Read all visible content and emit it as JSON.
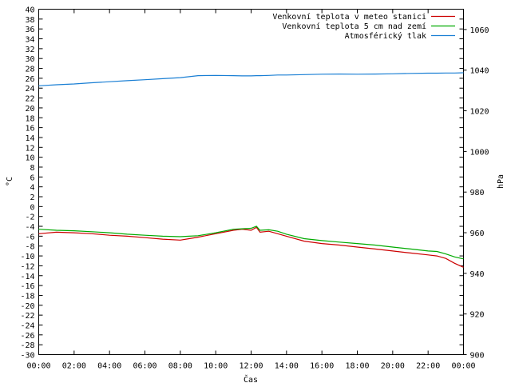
{
  "chart_data": {
    "type": "line",
    "xlabel": "Čas",
    "ylabel": "°C",
    "y2label": "hPa",
    "x_ticks": [
      "00:00",
      "02:00",
      "04:00",
      "06:00",
      "08:00",
      "10:00",
      "12:00",
      "14:00",
      "16:00",
      "18:00",
      "20:00",
      "22:00",
      "00:00"
    ],
    "x_unit": "hours",
    "xlim": [
      0,
      24
    ],
    "ylim": [
      -30,
      40
    ],
    "y_ticks": [
      40,
      38,
      36,
      34,
      32,
      30,
      28,
      26,
      24,
      22,
      20,
      18,
      16,
      14,
      12,
      10,
      8,
      6,
      4,
      2,
      0,
      -2,
      -4,
      -6,
      -8,
      -10,
      -12,
      -14,
      -16,
      -18,
      -20,
      -22,
      -24,
      -26,
      -28,
      -30
    ],
    "y2lim": [
      900,
      1070
    ],
    "y2_ticks": [
      1060,
      1040,
      1020,
      1000,
      980,
      960,
      940,
      920,
      900
    ],
    "grid": false,
    "legend_position": "top-right",
    "x": [
      0,
      1,
      2,
      3,
      4,
      5,
      6,
      7,
      8,
      8.5,
      9,
      10,
      11,
      11.5,
      12,
      12.3,
      12.5,
      13,
      13.5,
      14,
      15,
      16,
      17,
      18,
      19,
      20,
      21,
      22,
      22.5,
      23,
      23.5,
      24
    ],
    "series": [
      {
        "name": "Venkovní teplota v meteo stanici",
        "color": "#cc0000",
        "axis": "left",
        "values": [
          -5.5,
          -5.2,
          -5.3,
          -5.5,
          -5.8,
          -6.0,
          -6.3,
          -6.6,
          -6.8,
          -6.5,
          -6.2,
          -5.5,
          -4.8,
          -4.6,
          -4.8,
          -4.2,
          -5.2,
          -5.0,
          -5.5,
          -6.0,
          -7.0,
          -7.5,
          -7.8,
          -8.2,
          -8.6,
          -9.0,
          -9.4,
          -9.8,
          -10.0,
          -10.5,
          -11.5,
          -12.3
        ]
      },
      {
        "name": "Venkovní teplota 5 cm nad zemí",
        "color": "#00aa00",
        "axis": "left",
        "values": [
          -4.6,
          -4.8,
          -4.9,
          -5.1,
          -5.3,
          -5.6,
          -5.8,
          -6.0,
          -6.1,
          -6.0,
          -5.9,
          -5.3,
          -4.6,
          -4.5,
          -4.4,
          -4.0,
          -4.8,
          -4.7,
          -5.0,
          -5.6,
          -6.5,
          -6.9,
          -7.2,
          -7.5,
          -7.8,
          -8.2,
          -8.6,
          -9.0,
          -9.1,
          -9.6,
          -10.2,
          -10.6
        ]
      },
      {
        "name": "Atmosférický tlak",
        "color": "#1a7fd4",
        "axis": "right",
        "values": [
          1032.3,
          1032.8,
          1033.2,
          1033.8,
          1034.3,
          1034.8,
          1035.3,
          1035.8,
          1036.3,
          1036.8,
          1037.3,
          1037.4,
          1037.3,
          1037.2,
          1037.2,
          1037.3,
          1037.3,
          1037.4,
          1037.6,
          1037.6,
          1037.8,
          1038.0,
          1038.1,
          1038.0,
          1038.1,
          1038.2,
          1038.4,
          1038.5,
          1038.5,
          1038.6,
          1038.6,
          1038.7
        ]
      }
    ]
  }
}
